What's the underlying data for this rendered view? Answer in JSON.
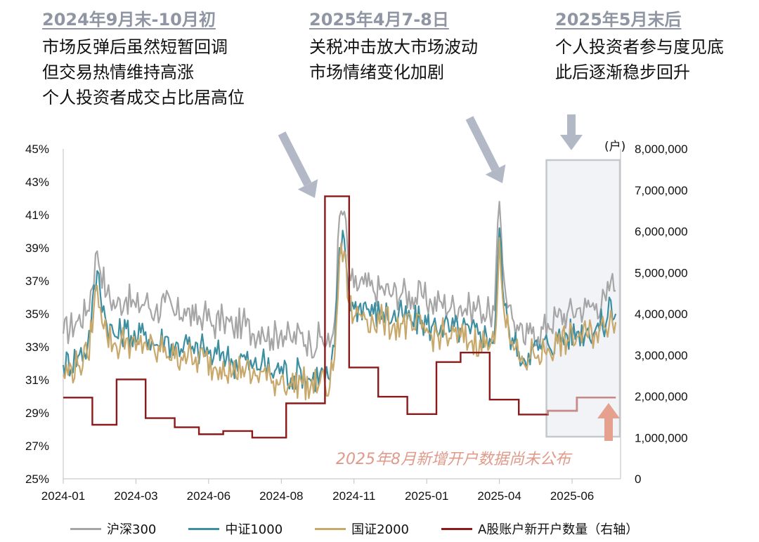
{
  "annotations": [
    {
      "title": "2024年9月末-10月初",
      "lines": [
        "市场反弹后虽然短暂回调",
        "但交易热情维持高涨",
        "个人投资者成交占比居高位"
      ]
    },
    {
      "title": "2025年4月7-8日",
      "lines": [
        "关税冲击放大市场波动",
        "市场情绪变化加剧"
      ]
    },
    {
      "title": "2025年5月末后",
      "lines": [
        "个人投资者参与度见底",
        "此后逐渐稳步回升"
      ]
    }
  ],
  "callout": "2025年8月新增开户数据尚未公布",
  "colors": {
    "hs300": "#a6a6a6",
    "zz1000": "#3c8ea0",
    "gz2000": "#c8a86b",
    "accounts": "#8b1a1a",
    "arrow": "#b3b8c6",
    "arrow_up": "#e6a08e"
  },
  "chart_data": {
    "type": "line",
    "y_axis_left": {
      "ticks": [
        "45%",
        "43%",
        "41%",
        "39%",
        "37%",
        "35%",
        "33%",
        "31%",
        "29%",
        "27%",
        "25%"
      ],
      "range": [
        25,
        45
      ]
    },
    "y_axis_right": {
      "unit": "(户)",
      "ticks": [
        "8,000,000",
        "7,000,000",
        "6,000,000",
        "5,000,000",
        "4,000,000",
        "3,000,000",
        "2,000,000",
        "1,000,000",
        "0"
      ],
      "range": [
        0,
        8000000
      ]
    },
    "x_axis": {
      "ticks": [
        "2024-01",
        "2024-03",
        "2024-06",
        "2024-08",
        "2024-11",
        "2025-01",
        "2025-04",
        "2025-06"
      ]
    },
    "legend": [
      "沪深300",
      "中证1000",
      "国证2000",
      "A股账户新开户数量（右轴）"
    ],
    "series": [
      {
        "name": "沪深300",
        "axis": "left",
        "points": [
          [
            0,
            33.8
          ],
          [
            3,
            34.6
          ],
          [
            5,
            35.2
          ],
          [
            7,
            38.8
          ],
          [
            9,
            36.2
          ],
          [
            11,
            35.5
          ],
          [
            13,
            36.0
          ],
          [
            15,
            35.4
          ],
          [
            17,
            35.8
          ],
          [
            19,
            35.1
          ],
          [
            21,
            35.7
          ],
          [
            23,
            34.9
          ],
          [
            25,
            35.3
          ],
          [
            27,
            34.6
          ],
          [
            29,
            35.0
          ],
          [
            31,
            34.3
          ],
          [
            33,
            34.7
          ],
          [
            35,
            34.1
          ],
          [
            37,
            34.5
          ],
          [
            39,
            33.8
          ],
          [
            41,
            34.2
          ],
          [
            43,
            33.5
          ],
          [
            45,
            34.0
          ],
          [
            47,
            33.4
          ],
          [
            49,
            33.8
          ],
          [
            51,
            33.2
          ],
          [
            53,
            33.6
          ],
          [
            55,
            33.0
          ],
          [
            56,
            34.6
          ],
          [
            57,
            40.9
          ],
          [
            58,
            41.2
          ],
          [
            59,
            37.5
          ],
          [
            60,
            36.6
          ],
          [
            62,
            36.8
          ],
          [
            64,
            36.4
          ],
          [
            66,
            36.5
          ],
          [
            68,
            36.2
          ],
          [
            70,
            36.3
          ],
          [
            72,
            36.0
          ],
          [
            74,
            36.1
          ],
          [
            76,
            35.6
          ],
          [
            78,
            35.7
          ],
          [
            80,
            35.4
          ],
          [
            82,
            35.5
          ],
          [
            84,
            35.3
          ],
          [
            86,
            35.4
          ],
          [
            88,
            35.0
          ],
          [
            89,
            35.2
          ],
          [
            90,
            41.8
          ],
          [
            91,
            37.0
          ],
          [
            92,
            35.5
          ],
          [
            93,
            34.5
          ],
          [
            94,
            34.0
          ],
          [
            95,
            33.3
          ],
          [
            96,
            33.8
          ],
          [
            97,
            34.2
          ],
          [
            98,
            33.6
          ],
          [
            100,
            34.4
          ],
          [
            102,
            34.8
          ],
          [
            104,
            35.0
          ],
          [
            106,
            35.3
          ],
          [
            108,
            35.4
          ],
          [
            110,
            35.6
          ],
          [
            112,
            35.8
          ],
          [
            113,
            37.0
          ],
          [
            114,
            36.4
          ]
        ]
      },
      {
        "name": "中证1000",
        "axis": "left",
        "points": [
          [
            0,
            31.9
          ],
          [
            3,
            32.4
          ],
          [
            5,
            33.0
          ],
          [
            7,
            37.6
          ],
          [
            9,
            34.3
          ],
          [
            11,
            33.6
          ],
          [
            13,
            34.1
          ],
          [
            15,
            33.4
          ],
          [
            17,
            33.9
          ],
          [
            19,
            33.1
          ],
          [
            21,
            33.6
          ],
          [
            23,
            32.9
          ],
          [
            25,
            33.3
          ],
          [
            27,
            32.6
          ],
          [
            29,
            33.0
          ],
          [
            31,
            32.3
          ],
          [
            33,
            32.7
          ],
          [
            35,
            32.0
          ],
          [
            37,
            32.4
          ],
          [
            39,
            31.7
          ],
          [
            41,
            32.1
          ],
          [
            43,
            31.4
          ],
          [
            45,
            31.8
          ],
          [
            47,
            31.1
          ],
          [
            49,
            31.6
          ],
          [
            51,
            31.0
          ],
          [
            53,
            31.4
          ],
          [
            55,
            31.0
          ],
          [
            56,
            33.0
          ],
          [
            57,
            39.0
          ],
          [
            58,
            39.5
          ],
          [
            59,
            36.2
          ],
          [
            60,
            35.3
          ],
          [
            62,
            35.6
          ],
          [
            64,
            35.0
          ],
          [
            66,
            35.1
          ],
          [
            68,
            34.8
          ],
          [
            70,
            34.9
          ],
          [
            72,
            34.5
          ],
          [
            74,
            34.6
          ],
          [
            76,
            34.2
          ],
          [
            78,
            34.3
          ],
          [
            80,
            34.0
          ],
          [
            82,
            34.1
          ],
          [
            84,
            33.8
          ],
          [
            86,
            33.9
          ],
          [
            88,
            33.5
          ],
          [
            89,
            33.7
          ],
          [
            90,
            40.2
          ],
          [
            91,
            35.5
          ],
          [
            92,
            34.0
          ],
          [
            93,
            33.2
          ],
          [
            94,
            32.7
          ],
          [
            95,
            32.3
          ],
          [
            96,
            32.6
          ],
          [
            97,
            33.0
          ],
          [
            98,
            32.8
          ],
          [
            100,
            33.2
          ],
          [
            102,
            33.5
          ],
          [
            104,
            33.7
          ],
          [
            106,
            33.9
          ],
          [
            108,
            34.0
          ],
          [
            110,
            34.2
          ],
          [
            112,
            34.4
          ],
          [
            113,
            35.8
          ],
          [
            114,
            35.0
          ]
        ]
      },
      {
        "name": "国证2000",
        "axis": "left",
        "points": [
          [
            0,
            31.3
          ],
          [
            3,
            31.9
          ],
          [
            5,
            32.4
          ],
          [
            7,
            36.7
          ],
          [
            9,
            33.7
          ],
          [
            11,
            33.0
          ],
          [
            13,
            33.5
          ],
          [
            15,
            32.8
          ],
          [
            17,
            33.3
          ],
          [
            19,
            32.5
          ],
          [
            21,
            33.0
          ],
          [
            23,
            32.3
          ],
          [
            25,
            32.7
          ],
          [
            27,
            32.0
          ],
          [
            29,
            32.4
          ],
          [
            31,
            31.7
          ],
          [
            33,
            32.1
          ],
          [
            35,
            31.4
          ],
          [
            37,
            31.8
          ],
          [
            39,
            31.1
          ],
          [
            41,
            31.5
          ],
          [
            43,
            30.8
          ],
          [
            45,
            31.2
          ],
          [
            47,
            30.6
          ],
          [
            49,
            31.0
          ],
          [
            51,
            30.5
          ],
          [
            53,
            30.9
          ],
          [
            55,
            30.6
          ],
          [
            56,
            32.4
          ],
          [
            57,
            38.3
          ],
          [
            58,
            38.8
          ],
          [
            59,
            35.6
          ],
          [
            60,
            34.8
          ],
          [
            62,
            35.1
          ],
          [
            64,
            34.5
          ],
          [
            66,
            34.6
          ],
          [
            68,
            34.3
          ],
          [
            70,
            34.4
          ],
          [
            72,
            34.0
          ],
          [
            74,
            34.1
          ],
          [
            76,
            33.7
          ],
          [
            78,
            33.8
          ],
          [
            80,
            33.5
          ],
          [
            82,
            33.6
          ],
          [
            84,
            33.3
          ],
          [
            86,
            33.4
          ],
          [
            88,
            33.0
          ],
          [
            89,
            33.2
          ],
          [
            90,
            39.6
          ],
          [
            91,
            35.0
          ],
          [
            92,
            33.6
          ],
          [
            93,
            32.8
          ],
          [
            94,
            32.3
          ],
          [
            95,
            32.0
          ],
          [
            96,
            32.3
          ],
          [
            97,
            32.7
          ],
          [
            98,
            32.5
          ],
          [
            100,
            32.9
          ],
          [
            102,
            33.2
          ],
          [
            104,
            33.4
          ],
          [
            106,
            33.6
          ],
          [
            108,
            33.7
          ],
          [
            110,
            33.9
          ],
          [
            112,
            34.1
          ],
          [
            113,
            35.2
          ],
          [
            114,
            34.5
          ]
        ]
      },
      {
        "name": "A股账户新开户数量（右轴）",
        "axis": "right",
        "steps": [
          [
            0,
            1970000
          ],
          [
            6,
            1310000
          ],
          [
            11,
            2410000
          ],
          [
            17,
            1470000
          ],
          [
            23,
            1250000
          ],
          [
            28,
            1080000
          ],
          [
            33,
            1160000
          ],
          [
            39,
            1000000
          ],
          [
            46,
            1830000
          ],
          [
            54,
            6850000
          ],
          [
            59,
            2700000
          ],
          [
            65,
            1990000
          ],
          [
            71,
            1570000
          ],
          [
            77,
            2830000
          ],
          [
            82,
            3060000
          ],
          [
            88,
            1920000
          ],
          [
            94,
            1560000
          ],
          [
            100,
            1650000
          ],
          [
            106,
            1970000
          ],
          [
            112,
            1970000
          ]
        ]
      }
    ],
    "highlight_box": {
      "from": 100,
      "to": 115
    }
  }
}
